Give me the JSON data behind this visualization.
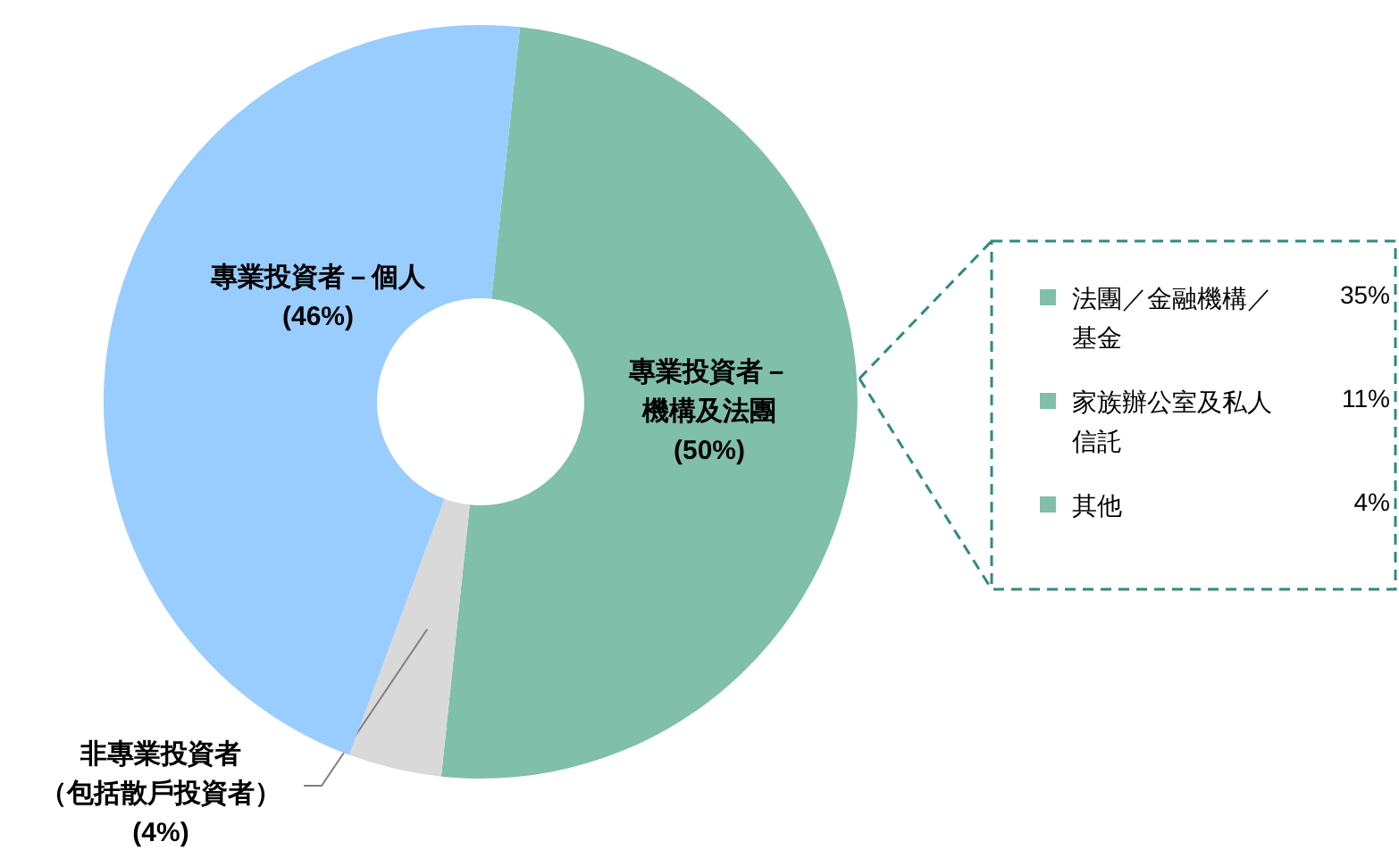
{
  "chart_data": [
    {
      "type": "donut",
      "categories": [
        "專業投資者－機構及法團",
        "非專業投資者（包括散戶投資者）",
        "專業投資者－個人"
      ],
      "values": [
        50,
        4,
        46
      ],
      "value_labels": [
        "(50%)",
        "(4%)",
        "(46%)"
      ],
      "colors": [
        "#80bfaa",
        "#d9d9d9",
        "#99ccff"
      ]
    },
    {
      "type": "other",
      "categories": [
        "法團／金融機構／基金",
        "家族辦公室及私人信託",
        "其他"
      ],
      "values": [
        35,
        11,
        4
      ],
      "value_labels": [
        "35%",
        "11%",
        "4%"
      ],
      "colors": [
        "#80bfaa",
        "#80bfaa",
        "#80bfaa"
      ]
    }
  ]
}
